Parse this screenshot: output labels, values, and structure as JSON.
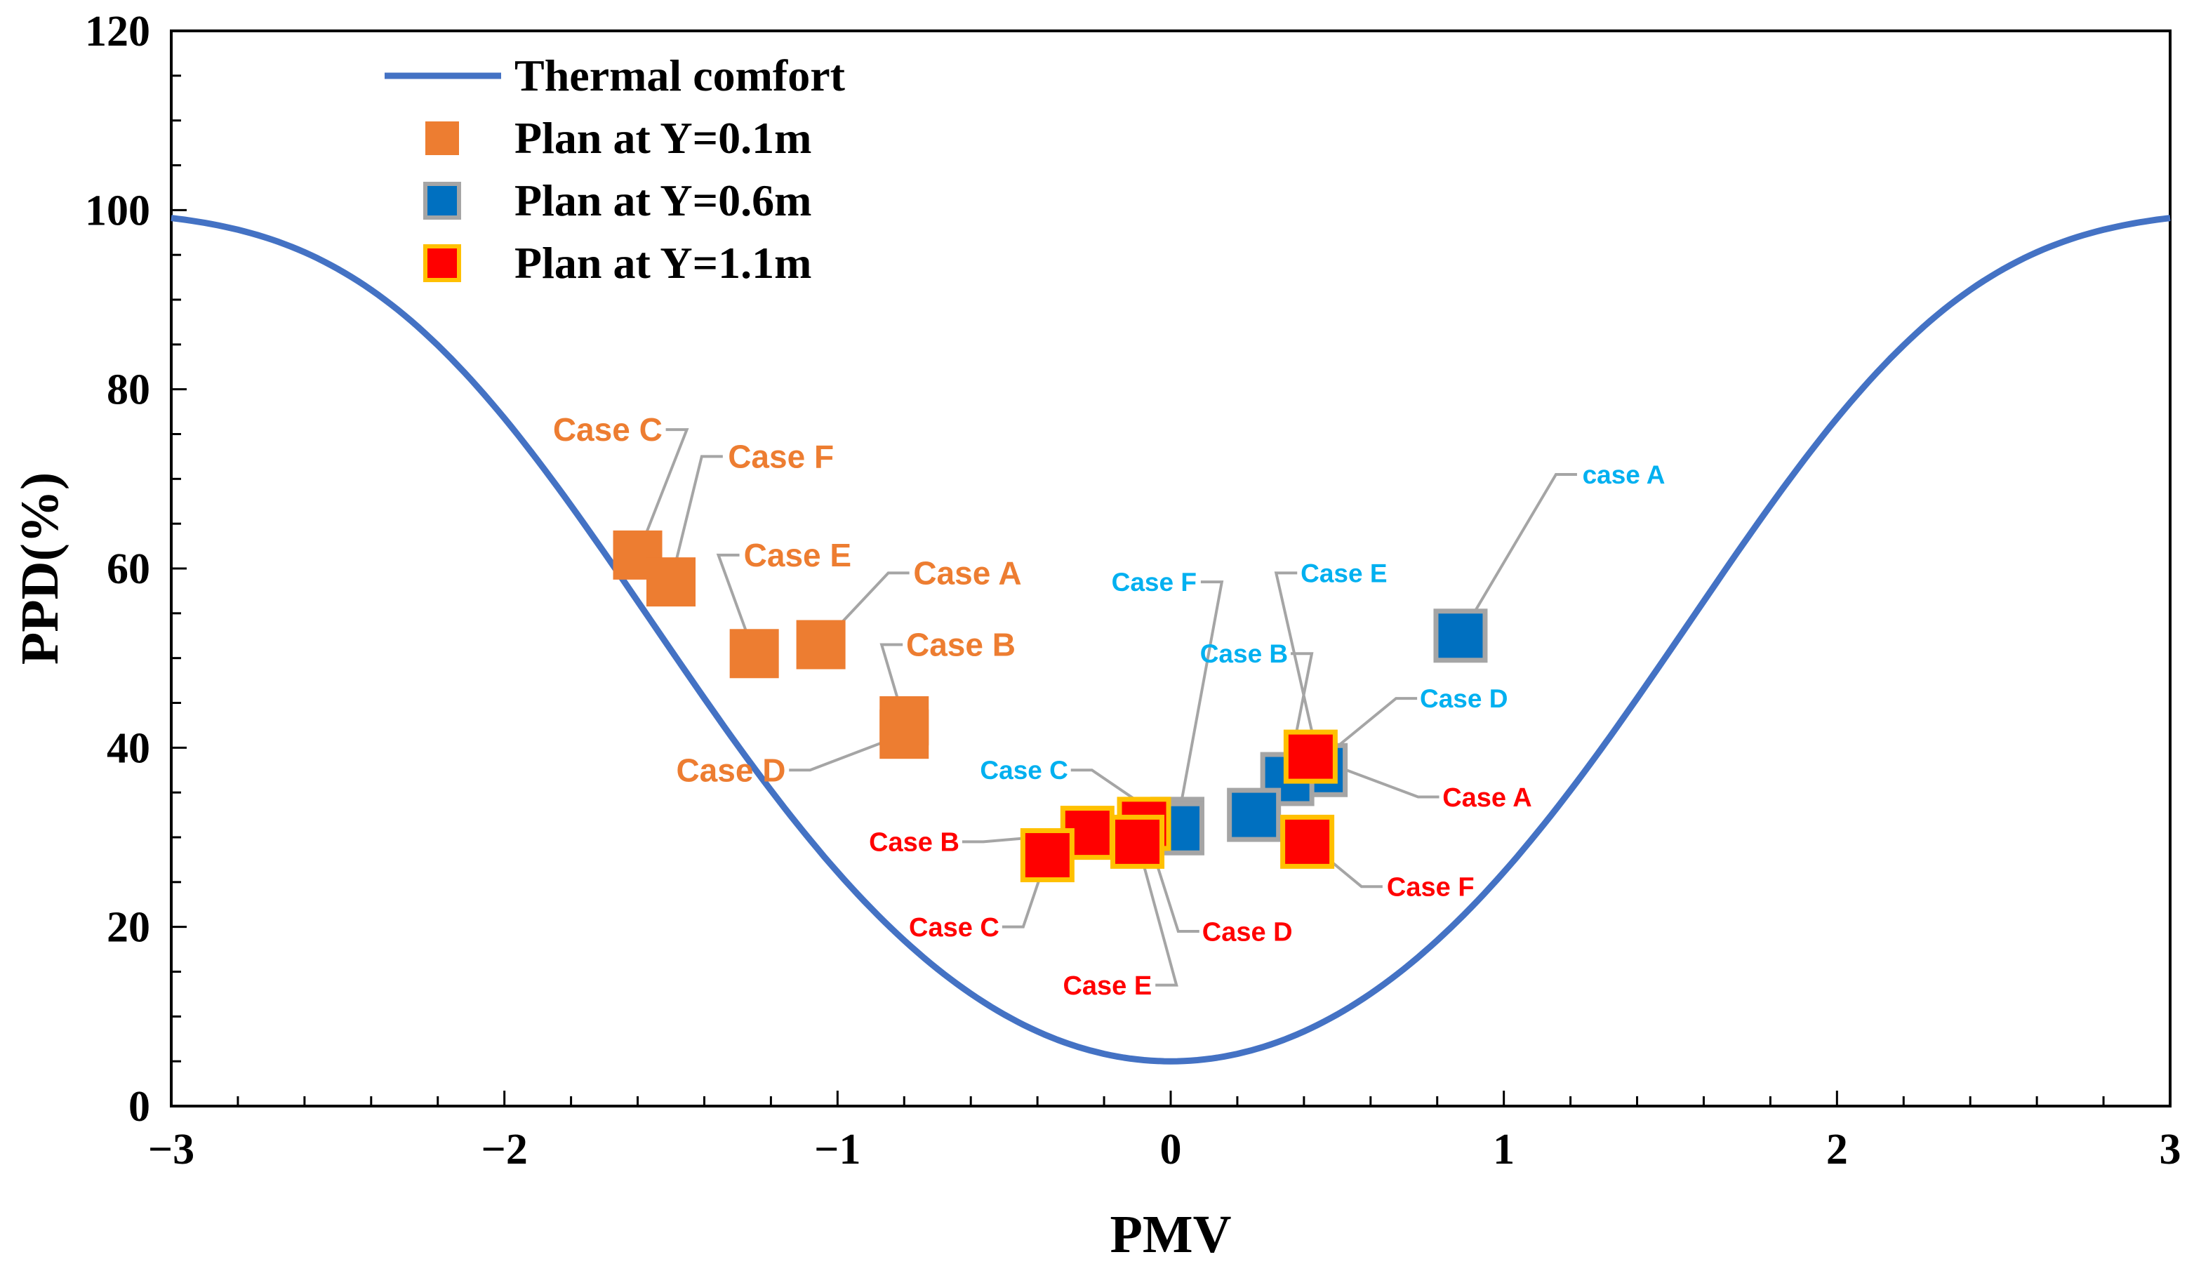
{
  "chart_data": {
    "type": "scatter",
    "xlabel": "PMV",
    "ylabel": "PPD(%)",
    "xlim": [
      -3,
      3
    ],
    "ylim": [
      0,
      120
    ],
    "x_ticks": [
      -3,
      -2,
      -1,
      0,
      1,
      2,
      3
    ],
    "x_tick_labels": [
      "−3",
      "−2",
      "−1",
      "0",
      "1",
      "2",
      "3"
    ],
    "y_ticks": [
      0,
      20,
      40,
      60,
      80,
      100,
      120
    ],
    "y_tick_labels": [
      "0",
      "20",
      "40",
      "60",
      "80",
      "100",
      "120"
    ],
    "grid": false,
    "legend_position": "top-left",
    "colors": {
      "curve": "#4472C4",
      "orange": "#ED7D31",
      "blue": "#0070C0",
      "red": "#FF0000",
      "gold": "#FFC000",
      "gray": "#A5A5A5",
      "cyan_label": "#00B0F0"
    },
    "legend": [
      {
        "label": "Thermal comfort",
        "marker": "line",
        "color": "#4472C4"
      },
      {
        "label": "Plan at Y=0.1m",
        "marker": "square",
        "color": "#ED7D31",
        "edge": "#ED7D31"
      },
      {
        "label": "Plan at Y=0.6m",
        "marker": "square",
        "color": "#0070C0",
        "edge": "#A5A5A5"
      },
      {
        "label": "Plan at Y=1.1m",
        "marker": "square",
        "color": "#FF0000",
        "edge": "#FFC000"
      }
    ],
    "curve": {
      "name": "Thermal comfort",
      "formula": "PPD = 100 - 95*exp(-0.03353*PMV^4 - 0.2179*PMV^2)",
      "points": [
        [
          -3,
          99
        ],
        [
          -2.8,
          98
        ],
        [
          -2.6,
          94
        ],
        [
          -2.4,
          88
        ],
        [
          -2.2,
          81
        ],
        [
          -2,
          73
        ],
        [
          -1.8,
          65
        ],
        [
          -1.6,
          58
        ],
        [
          -1.4,
          49
        ],
        [
          -1.2,
          40
        ],
        [
          -1,
          31
        ],
        [
          -0.8,
          23
        ],
        [
          -0.6,
          16
        ],
        [
          -0.4,
          10
        ],
        [
          -0.2,
          6.5
        ],
        [
          0,
          5
        ],
        [
          0.2,
          6.5
        ],
        [
          0.4,
          10
        ],
        [
          0.6,
          16
        ],
        [
          0.8,
          23
        ],
        [
          1,
          31
        ],
        [
          1.2,
          40
        ],
        [
          1.4,
          49
        ],
        [
          1.6,
          58
        ],
        [
          1.8,
          66
        ],
        [
          2,
          75
        ],
        [
          2.2,
          83
        ],
        [
          2.4,
          90
        ],
        [
          2.6,
          94.5
        ],
        [
          2.8,
          97
        ],
        [
          3,
          99.5
        ]
      ]
    },
    "series": [
      {
        "name": "Plan at Y=0.1m",
        "color": "#ED7D31",
        "edge": "#ED7D31",
        "label_color": "#ED7D31",
        "points": [
          {
            "case": "Case C",
            "x": -1.6,
            "y": 61.5,
            "label_x": -1.69,
            "label_y": 75.5
          },
          {
            "case": "Case F",
            "x": -1.5,
            "y": 58.5,
            "label_x": -1.17,
            "label_y": 72.5
          },
          {
            "case": "Case E",
            "x": -1.25,
            "y": 50.5,
            "label_x": -1.12,
            "label_y": 61.5
          },
          {
            "case": "Case A",
            "x": -1.05,
            "y": 51.5,
            "label_x": -0.61,
            "label_y": 59.5
          },
          {
            "case": "Case B",
            "x": -0.8,
            "y": 43,
            "label_x": -0.63,
            "label_y": 51.5
          },
          {
            "case": "Case D",
            "x": -0.8,
            "y": 41.5,
            "label_x": -1.32,
            "label_y": 37.5
          }
        ]
      },
      {
        "name": "Plan at Y=0.6m",
        "color": "#0070C0",
        "edge": "#A5A5A5",
        "label_color": "#00B0F0",
        "points": [
          {
            "case": "case A",
            "x": 0.87,
            "y": 52.5,
            "label_x": 1.36,
            "label_y": 70.5
          },
          {
            "case": "Case E",
            "x": 0.45,
            "y": 37.5,
            "label_x": 0.52,
            "label_y": 59.5
          },
          {
            "case": "Case B",
            "x": 0.35,
            "y": 36.5,
            "label_x": 0.22,
            "label_y": 50.5
          },
          {
            "case": "Case D",
            "x": 0.25,
            "y": 32.5,
            "label_x": 0.88,
            "label_y": 45.5
          },
          {
            "case": "Case F",
            "x": 0.02,
            "y": 31.5,
            "label_x": -0.05,
            "label_y": 58.5
          },
          {
            "case": "Case C",
            "x": 0.02,
            "y": 31.0,
            "label_x": -0.44,
            "label_y": 37.5
          }
        ]
      },
      {
        "name": "Plan at Y=1.1m",
        "color": "#FF0000",
        "edge": "#FFC000",
        "label_color": "#FF0000",
        "points": [
          {
            "case": "Case A",
            "x": 0.42,
            "y": 39.0,
            "label_x": 0.95,
            "label_y": 34.5
          },
          {
            "case": "Case F",
            "x": 0.41,
            "y": 29.5,
            "label_x": 0.78,
            "label_y": 24.5
          },
          {
            "case": "Case D",
            "x": -0.08,
            "y": 31.5,
            "label_x": 0.23,
            "label_y": 19.5
          },
          {
            "case": "Case B",
            "x": -0.25,
            "y": 30.5,
            "label_x": -0.77,
            "label_y": 29.5
          },
          {
            "case": "Case C",
            "x": -0.37,
            "y": 28.0,
            "label_x": -0.65,
            "label_y": 20.0
          },
          {
            "case": "Case E",
            "x": -0.1,
            "y": 29.5,
            "label_x": -0.19,
            "label_y": 13.5
          }
        ]
      }
    ]
  }
}
